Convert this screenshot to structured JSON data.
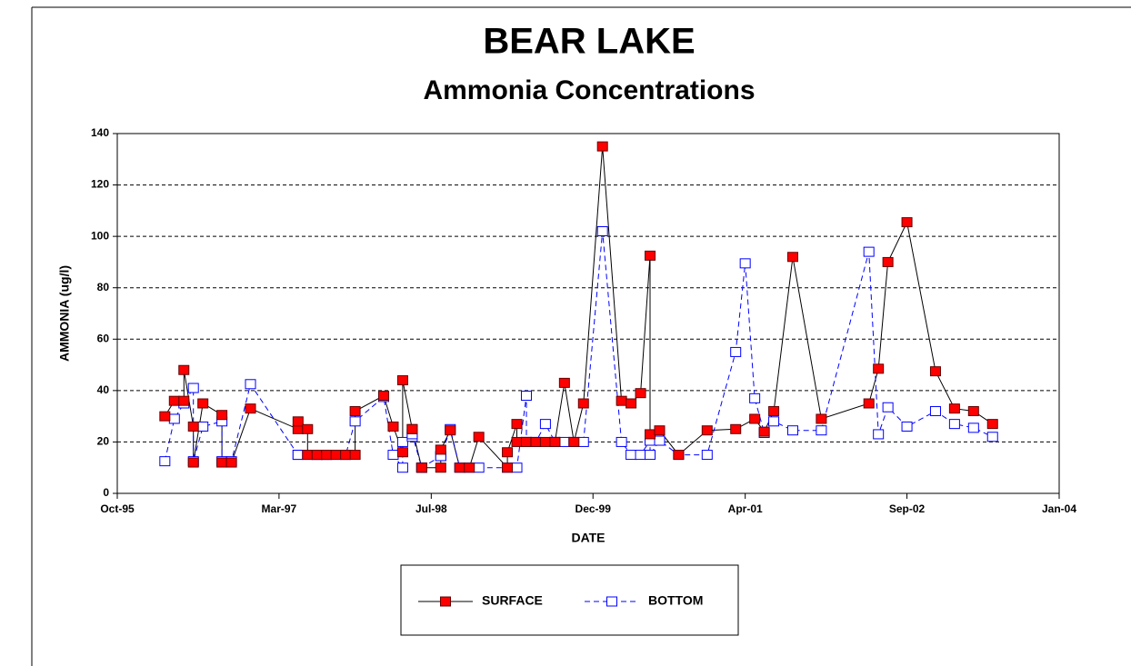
{
  "chart_data": {
    "type": "line",
    "title": "BEAR LAKE",
    "subtitle": "Ammonia Concentrations",
    "x_label": "DATE",
    "y_label": "AMMONIA (ug/l)",
    "xlim": [
      "1995-10",
      "2004-01"
    ],
    "xticks": [
      {
        "value": "1995-10",
        "label": "Oct-95"
      },
      {
        "value": "1997-03",
        "label": "Mar-97"
      },
      {
        "value": "1998-07",
        "label": "Jul-98"
      },
      {
        "value": "1999-12",
        "label": "Dec-99"
      },
      {
        "value": "2001-04",
        "label": "Apr-01"
      },
      {
        "value": "2002-09",
        "label": "Sep-02"
      },
      {
        "value": "2004-01",
        "label": "Jan-04"
      }
    ],
    "ylim": [
      0,
      140
    ],
    "yticks": [
      0,
      20,
      40,
      60,
      80,
      100,
      120,
      140
    ],
    "grid": true,
    "legend": "bottom",
    "series": [
      {
        "name": "SURFACE",
        "color": "#ff0000",
        "line_color": "#000000",
        "dashed": false,
        "x": [
          "1996-03",
          "1996-04",
          "1996-05",
          "1996-05",
          "1996-06",
          "1996-06",
          "1996-07",
          "1996-09",
          "1996-09",
          "1996-10",
          "1996-12",
          "1997-05",
          "1997-05",
          "1997-06",
          "1997-06",
          "1997-07",
          "1997-07",
          "1997-08",
          "1997-08",
          "1997-09",
          "1997-10",
          "1997-10",
          "1997-11",
          "1997-11",
          "1998-02",
          "1998-03",
          "1998-04",
          "1998-04",
          "1998-05",
          "1998-05",
          "1998-06",
          "1998-06",
          "1998-08",
          "1998-08",
          "1998-09",
          "1998-10",
          "1998-11",
          "1998-12",
          "1999-03",
          "1999-03",
          "1999-04",
          "1999-04",
          "1999-05",
          "1999-05",
          "1999-06",
          "1999-07",
          "1999-08",
          "1999-08",
          "1999-09",
          "1999-10",
          "1999-11",
          "2000-01",
          "2000-03",
          "2000-04",
          "2000-05",
          "2000-06",
          "2000-06",
          "2000-07",
          "2000-09",
          "2000-12",
          "2001-03",
          "2001-05",
          "2001-06",
          "2001-07",
          "2001-09",
          "2001-12",
          "2002-05",
          "2002-06",
          "2002-07",
          "2002-09",
          "2002-12",
          "2003-02",
          "2003-04",
          "2003-06"
        ],
        "values": [
          30,
          36,
          36,
          48,
          26,
          12,
          35,
          30.5,
          12,
          12,
          33,
          25,
          28,
          25,
          15,
          15,
          15,
          15,
          15,
          15,
          15,
          15,
          15,
          32,
          38,
          26,
          16,
          44,
          25,
          25,
          10,
          10,
          10,
          17,
          24.5,
          10,
          10,
          22,
          10,
          16,
          27,
          20,
          20,
          20,
          20,
          20,
          20,
          20,
          43,
          20,
          35,
          135,
          36,
          35,
          39,
          92.5,
          23,
          24.5,
          15,
          24.5,
          25,
          29,
          24,
          32,
          92,
          29,
          35,
          48.5,
          90,
          105.5,
          47.5,
          33,
          32,
          27
        ]
      },
      {
        "name": "BOTTOM",
        "color": "#ffffff",
        "line_color": "#0000ff",
        "dashed": true,
        "x": [
          "1996-03",
          "1996-04",
          "1996-05",
          "1996-06",
          "1996-06",
          "1996-07",
          "1996-09",
          "1996-09",
          "1996-10",
          "1996-12",
          "1997-05",
          "1997-05",
          "1997-06",
          "1997-07",
          "1997-07",
          "1997-08",
          "1997-08",
          "1997-09",
          "1997-10",
          "1997-11",
          "1998-02",
          "1998-03",
          "1998-04",
          "1998-04",
          "1998-05",
          "1998-05",
          "1998-06",
          "1998-06",
          "1998-08",
          "1998-08",
          "1998-09",
          "1998-10",
          "1998-11",
          "1998-12",
          "1999-03",
          "1999-04",
          "1999-05",
          "1999-05",
          "1999-06",
          "1999-07",
          "1999-08",
          "1999-09",
          "1999-10",
          "1999-11",
          "2000-01",
          "2000-03",
          "2000-04",
          "2000-05",
          "2000-06",
          "2000-06",
          "2000-07",
          "2000-09",
          "2000-12",
          "2001-03",
          "2001-04",
          "2001-05",
          "2001-06",
          "2001-07",
          "2001-09",
          "2001-12",
          "2002-05",
          "2002-06",
          "2002-07",
          "2002-09",
          "2002-12",
          "2003-02",
          "2003-04",
          "2003-06"
        ],
        "values": [
          12.5,
          29,
          35,
          41,
          12.5,
          26,
          28,
          12.5,
          12.5,
          42.5,
          15,
          15,
          15,
          15,
          15,
          15,
          15,
          15,
          15,
          28,
          37.5,
          15,
          10,
          20,
          22,
          23,
          10,
          10,
          14.5,
          14.5,
          25,
          10,
          10,
          10,
          10,
          10,
          38,
          20,
          20,
          27,
          20,
          20,
          20,
          20,
          102,
          20,
          15,
          15,
          20.5,
          15,
          20.5,
          15,
          15,
          55,
          89.5,
          37,
          23.5,
          28,
          24.5,
          24.5,
          94,
          23,
          33.5,
          26,
          32,
          27,
          25.5,
          22
        ]
      }
    ]
  }
}
